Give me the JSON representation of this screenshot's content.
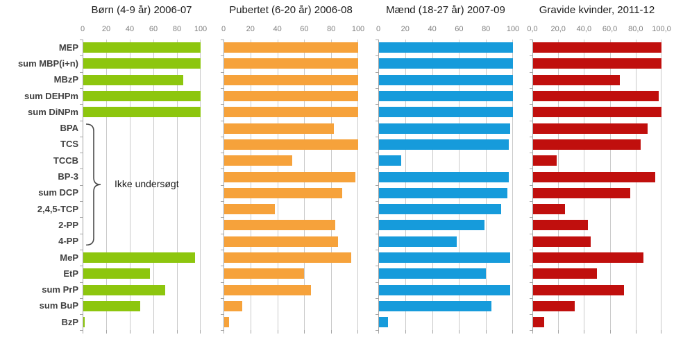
{
  "chart_data": {
    "type": "bar",
    "orientation": "horizontal",
    "xlabel": "",
    "ylabel": "",
    "xlim": [
      0,
      100
    ],
    "grid": true,
    "categories": [
      "MEP",
      "sum MBP(i+n)",
      "MBzP",
      "sum DEHPm",
      "sum DiNPm",
      "BPA",
      "TCS",
      "TCCB",
      "BP-3",
      "sum DCP",
      "2,4,5-TCP",
      "2-PP",
      "4-PP",
      "MeP",
      "EtP",
      "sum PrP",
      "sum BuP",
      "BzP"
    ],
    "panels": [
      {
        "title": "Børn (4-9 år) 2006-07",
        "color": "#8dc60e",
        "axis_ticks": [
          "0",
          "20",
          "40",
          "60",
          "80",
          "100"
        ],
        "values": [
          100,
          100,
          85,
          100,
          100,
          null,
          null,
          null,
          null,
          null,
          null,
          null,
          null,
          95,
          57,
          70,
          49,
          2
        ],
        "annotation": "Ikke undersøgt",
        "annotation_row_span": [
          5,
          12
        ]
      },
      {
        "title": "Pubertet (6-20 år) 2006-08",
        "color": "#f6a23b",
        "axis_ticks": [
          "0",
          "20",
          "40",
          "60",
          "80",
          "100"
        ],
        "values": [
          100,
          100,
          100,
          100,
          100,
          82,
          100,
          51,
          98,
          88,
          38,
          83,
          85,
          95,
          60,
          65,
          14,
          4
        ]
      },
      {
        "title": "Mænd (18-27 år) 2007-09",
        "color": "#169bdb",
        "axis_ticks": [
          "0",
          "20",
          "40",
          "60",
          "80",
          "100"
        ],
        "values": [
          100,
          100,
          100,
          100,
          100,
          98,
          97,
          17,
          97,
          96,
          91,
          79,
          58,
          98,
          80,
          98,
          84,
          7
        ]
      },
      {
        "title": "Gravide kvinder, 2011-12",
        "color": "#c00f0d",
        "axis_ticks": [
          "0,0",
          "20,0",
          "40,0",
          "60,0",
          "80,0",
          "100,0"
        ],
        "values": [
          100,
          100,
          68,
          98,
          100,
          89,
          84,
          19,
          95,
          76,
          25,
          43,
          45,
          86,
          50,
          71,
          33,
          9
        ]
      }
    ],
    "style": {
      "gridline_color": "#c9c9c9",
      "axis_color": "#a3a3a3",
      "tick_label_color": "#808080",
      "category_label_color": "#3f3f3f",
      "title_color": "#1a1a1a",
      "background": "#ffffff"
    }
  }
}
